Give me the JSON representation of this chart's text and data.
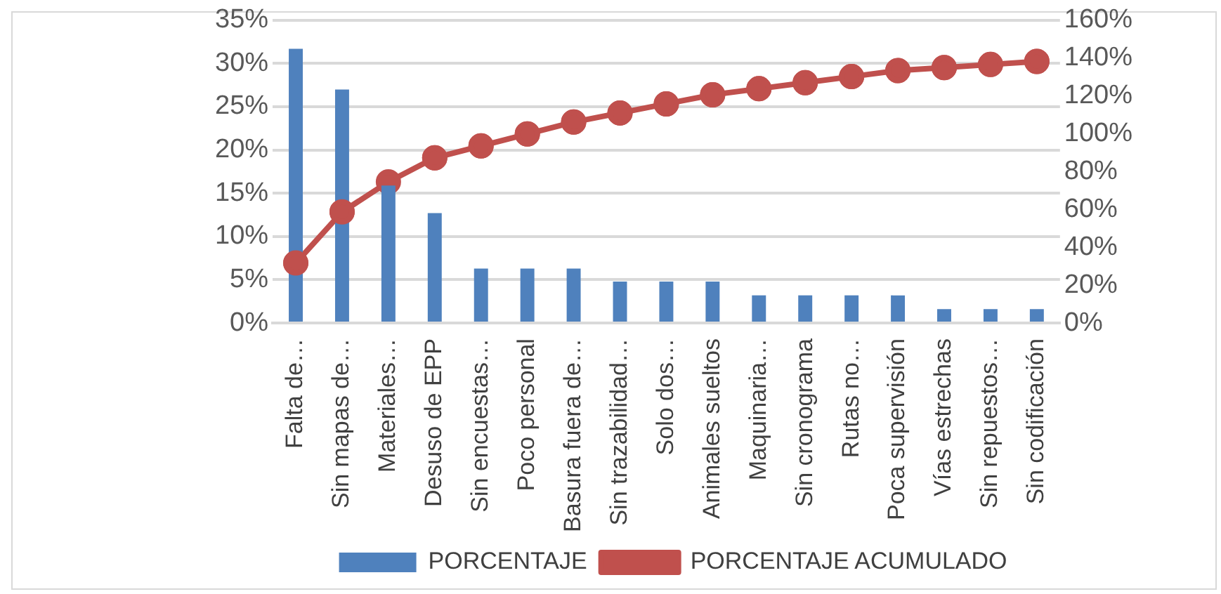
{
  "chart_data": {
    "type": "bar",
    "categories": [
      "Falta de…",
      "Sin mapas de…",
      "Materiales…",
      "Desuso de EPP",
      "Sin encuestas…",
      "Poco personal",
      "Basura fuera de…",
      "Sin trazabilidad…",
      "Solo dos…",
      "Animales sueltos",
      "Maquinaria…",
      "Sin cronograma",
      "Rutas no…",
      "Poca supervisión",
      "Vías estrechas",
      "Sin repuestos…",
      "Sin codificación"
    ],
    "series": [
      {
        "name": "PORCENTAJE",
        "color": "#4f81bd",
        "values": [
          31.7,
          27,
          15.9,
          12.7,
          6.3,
          6.3,
          6.3,
          4.8,
          4.8,
          4.8,
          3.2,
          3.2,
          3.2,
          3.2,
          1.6,
          1.6,
          1.6
        ]
      },
      {
        "name": "PORCENTAJE ACUMULADO",
        "type": "line",
        "axis": "y2",
        "color": "#c0504d",
        "marker": "circle",
        "values": [
          31.7,
          58.7,
          74.6,
          87.3,
          93.6,
          99.9,
          106.2,
          111,
          115.8,
          120.6,
          123.8,
          127,
          130.2,
          133.4,
          135,
          136.6,
          138.2
        ]
      }
    ],
    "ylim": [
      0,
      35
    ],
    "yticks": [
      {
        "value": 0,
        "label": "0%"
      },
      {
        "value": 5,
        "label": "5%"
      },
      {
        "value": 10,
        "label": "10%"
      },
      {
        "value": 15,
        "label": "15%"
      },
      {
        "value": 20,
        "label": "20%"
      },
      {
        "value": 25,
        "label": "25%"
      },
      {
        "value": 30,
        "label": "30%"
      },
      {
        "value": 35,
        "label": "35%"
      }
    ],
    "y2lim": [
      0,
      160
    ],
    "y2ticks": [
      {
        "value": 0,
        "label": "0%"
      },
      {
        "value": 20,
        "label": "20%"
      },
      {
        "value": 40,
        "label": "40%"
      },
      {
        "value": 60,
        "label": "60%"
      },
      {
        "value": 80,
        "label": "80%"
      },
      {
        "value": 100,
        "label": "100%"
      },
      {
        "value": 120,
        "label": "120%"
      },
      {
        "value": 140,
        "label": "140%"
      },
      {
        "value": 160,
        "label": "160%"
      }
    ],
    "grid": "y",
    "legend": "bottom"
  }
}
